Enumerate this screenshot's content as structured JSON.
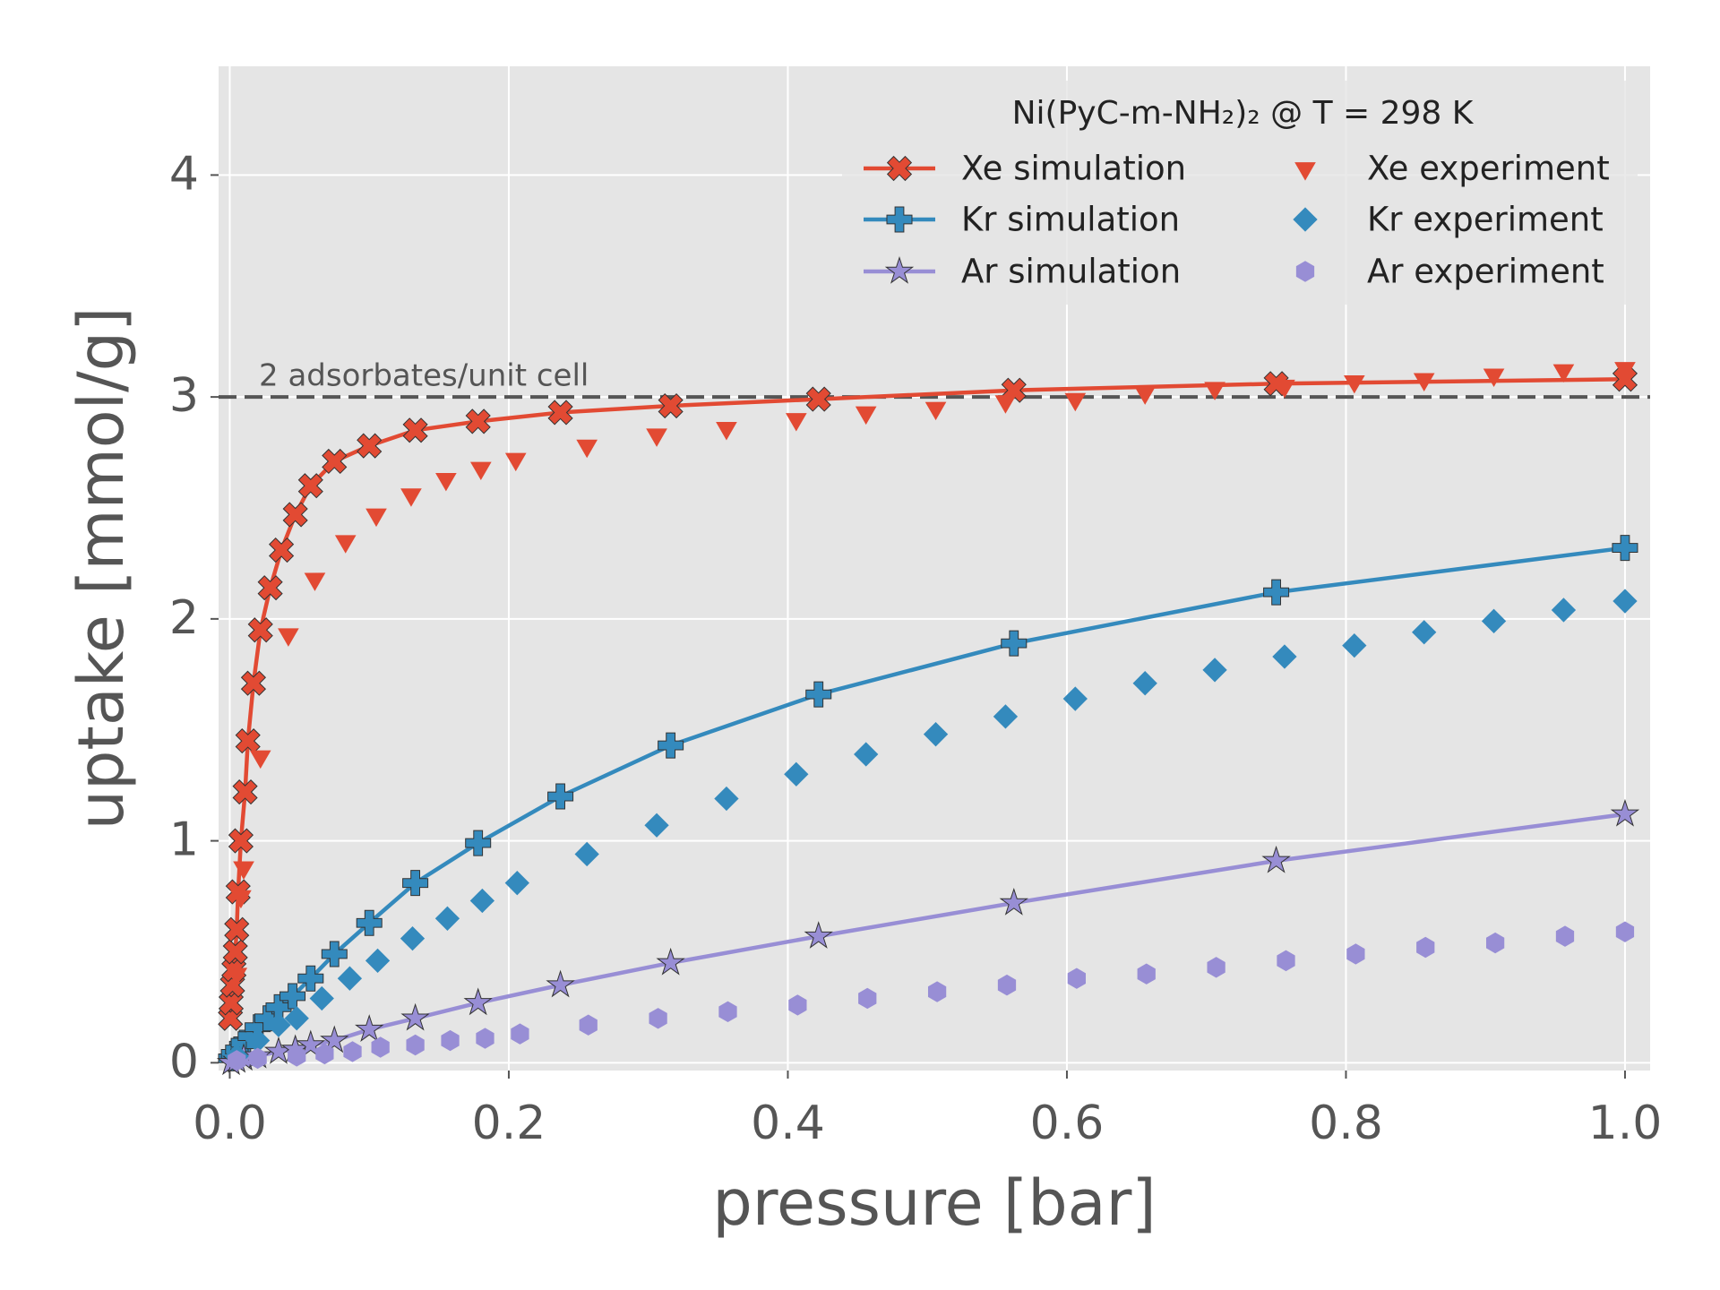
{
  "chart_data": {
    "type": "scatter",
    "xlabel": "pressure [bar]",
    "ylabel": "uptake [mmol/g]",
    "xlim": [
      -0.008,
      1.018
    ],
    "ylim": [
      -0.035,
      4.49
    ],
    "xticks": [
      {
        "value": 0,
        "label": "0.0"
      },
      0.2,
      0.4,
      0.6,
      0.8,
      {
        "value": 1,
        "label": "1.0"
      }
    ],
    "yticks": [
      0,
      1,
      2,
      3,
      4
    ],
    "grid": true,
    "legend_title": "Ni(PyC-m-NH₂)₂  @  T = 298 K",
    "legend_position": "upper right",
    "hlines": [
      {
        "y": 3,
        "label": "2 adsorbates/unit cell",
        "color": "#555555"
      }
    ],
    "series": [
      {
        "name": "Xe simulation",
        "color": "#E24A33",
        "marker": "X",
        "line": true,
        "x": [
          0.0005,
          0.001,
          0.002,
          0.003,
          0.004,
          0.005,
          0.006,
          0.008,
          0.011,
          0.013,
          0.017,
          0.022,
          0.029,
          0.037,
          0.047,
          0.058,
          0.075,
          0.1,
          0.133,
          0.178,
          0.237,
          0.316,
          0.422,
          0.562,
          0.75,
          1.0
        ],
        "values": [
          0.2,
          0.27,
          0.35,
          0.42,
          0.5,
          0.6,
          0.77,
          1.0,
          1.22,
          1.45,
          1.71,
          1.95,
          2.14,
          2.31,
          2.47,
          2.6,
          2.71,
          2.78,
          2.85,
          2.89,
          2.93,
          2.96,
          2.99,
          3.03,
          3.06,
          3.08
        ]
      },
      {
        "name": "Kr simulation",
        "color": "#348ABD",
        "marker": "P",
        "line": true,
        "x": [
          0.001,
          0.003,
          0.006,
          0.01,
          0.015,
          0.02,
          0.027,
          0.035,
          0.045,
          0.058,
          0.075,
          0.1,
          0.133,
          0.178,
          0.237,
          0.316,
          0.422,
          0.562,
          0.75,
          1.0
        ],
        "values": [
          0.02,
          0.04,
          0.06,
          0.09,
          0.12,
          0.16,
          0.2,
          0.25,
          0.3,
          0.38,
          0.49,
          0.63,
          0.81,
          0.99,
          1.2,
          1.43,
          1.66,
          1.89,
          2.12,
          2.32
        ]
      },
      {
        "name": "Ar simulation",
        "color": "#988ED5",
        "marker": "star",
        "line": true,
        "x": [
          0.001,
          0.005,
          0.01,
          0.02,
          0.035,
          0.047,
          0.058,
          0.075,
          0.1,
          0.133,
          0.178,
          0.237,
          0.316,
          0.422,
          0.562,
          0.75,
          1.0
        ],
        "values": [
          0.0,
          0.01,
          0.02,
          0.03,
          0.05,
          0.06,
          0.08,
          0.1,
          0.15,
          0.2,
          0.27,
          0.35,
          0.45,
          0.57,
          0.72,
          0.91,
          1.12
        ]
      },
      {
        "name": "Xe experiment",
        "color": "#E24A33",
        "marker": "v",
        "line": false,
        "x": [
          0.005,
          0.008,
          0.01,
          0.022,
          0.042,
          0.061,
          0.083,
          0.105,
          0.13,
          0.155,
          0.18,
          0.205,
          0.256,
          0.306,
          0.356,
          0.406,
          0.456,
          0.506,
          0.556,
          0.606,
          0.656,
          0.706,
          0.756,
          0.806,
          0.856,
          0.906,
          0.956,
          1.0
        ],
        "values": [
          0.4,
          0.75,
          0.88,
          1.38,
          1.93,
          2.18,
          2.35,
          2.47,
          2.56,
          2.63,
          2.68,
          2.72,
          2.78,
          2.83,
          2.86,
          2.9,
          2.93,
          2.95,
          2.98,
          2.99,
          3.02,
          3.04,
          3.05,
          3.07,
          3.08,
          3.1,
          3.12,
          3.13
        ]
      },
      {
        "name": "Kr experiment",
        "color": "#348ABD",
        "marker": "D",
        "line": false,
        "x": [
          0.005,
          0.02,
          0.035,
          0.048,
          0.066,
          0.086,
          0.106,
          0.131,
          0.156,
          0.181,
          0.206,
          0.256,
          0.306,
          0.356,
          0.406,
          0.456,
          0.506,
          0.556,
          0.606,
          0.656,
          0.706,
          0.756,
          0.806,
          0.856,
          0.906,
          0.956,
          1.0
        ],
        "values": [
          0.03,
          0.1,
          0.17,
          0.2,
          0.29,
          0.38,
          0.46,
          0.56,
          0.65,
          0.73,
          0.81,
          0.94,
          1.07,
          1.19,
          1.3,
          1.39,
          1.48,
          1.56,
          1.64,
          1.71,
          1.77,
          1.83,
          1.88,
          1.94,
          1.99,
          2.04,
          2.08
        ]
      },
      {
        "name": "Ar experiment",
        "color": "#988ED5",
        "marker": "h",
        "line": false,
        "x": [
          0.005,
          0.02,
          0.048,
          0.068,
          0.088,
          0.108,
          0.133,
          0.158,
          0.183,
          0.208,
          0.257,
          0.307,
          0.357,
          0.407,
          0.457,
          0.507,
          0.557,
          0.607,
          0.657,
          0.707,
          0.757,
          0.807,
          0.857,
          0.907,
          0.957,
          1.0
        ],
        "values": [
          0.01,
          0.02,
          0.03,
          0.04,
          0.05,
          0.07,
          0.08,
          0.1,
          0.11,
          0.13,
          0.17,
          0.2,
          0.23,
          0.26,
          0.29,
          0.32,
          0.35,
          0.38,
          0.4,
          0.43,
          0.46,
          0.49,
          0.52,
          0.54,
          0.57,
          0.59
        ]
      }
    ]
  }
}
